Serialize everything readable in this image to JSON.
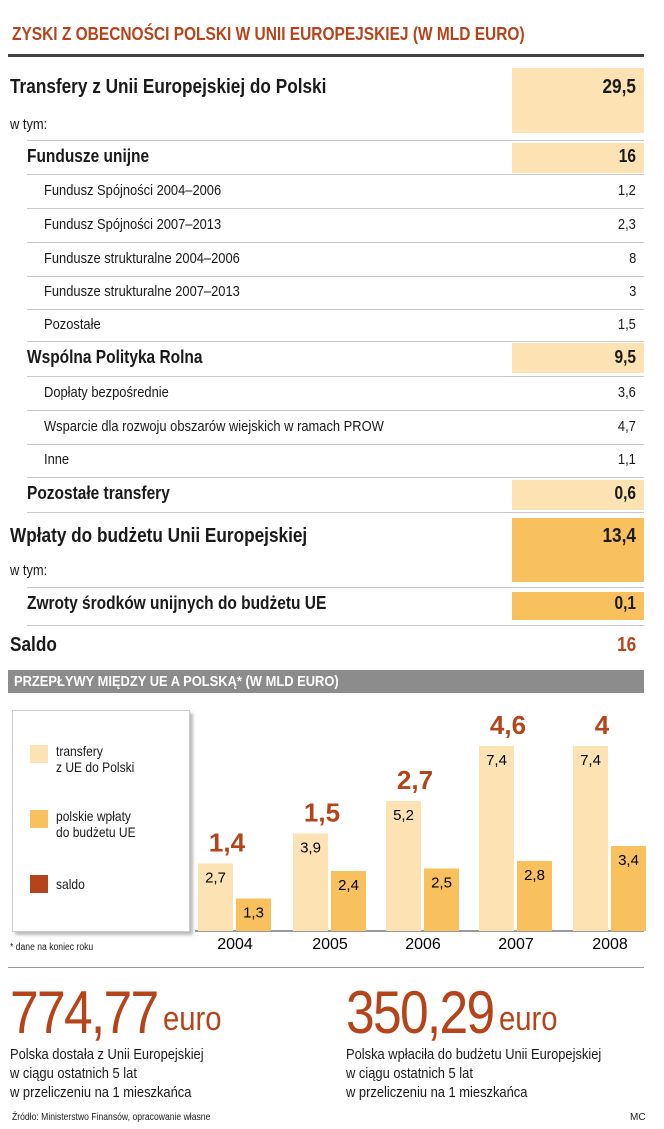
{
  "header": {
    "title": "ZYSKI Z OBECNOŚCI POLSKI W UNII EUROPEJSKIEJ (W MLD EURO)"
  },
  "table": {
    "rows": [
      {
        "label": "Transfery z Unii Europejskiej do Polski",
        "value": "29,5"
      },
      {
        "label": "w tym:"
      },
      {
        "label": "Fundusze unijne",
        "value": "16"
      },
      {
        "label": "Fundusz Spójności 2004–2006",
        "value": "1,2"
      },
      {
        "label": "Fundusz Spójności 2007–2013",
        "value": "2,3"
      },
      {
        "label": "Fundusze strukturalne 2004–2006",
        "value": "8"
      },
      {
        "label": "Fundusze strukturalne 2007–2013",
        "value": "3"
      },
      {
        "label": "Pozostałe",
        "value": "1,5"
      },
      {
        "label": "Wspólna Polityka Rolna",
        "value": "9,5"
      },
      {
        "label": "Dopłaty bezpośrednie",
        "value": "3,6"
      },
      {
        "label": "Wsparcie dla rozwoju obszarów wiejskich w ramach PROW",
        "value": "4,7"
      },
      {
        "label": "Inne",
        "value": "1,1"
      },
      {
        "label": "Pozostałe transfery",
        "value": "0,6"
      },
      {
        "label": "Wpłaty do budżetu Unii Europejskiej",
        "value": "13,4"
      },
      {
        "label": "w tym:"
      },
      {
        "label": "Zwroty środków unijnych do budżetu UE",
        "value": "0,1"
      },
      {
        "label": "Saldo",
        "value": "16"
      }
    ]
  },
  "chart_data": {
    "type": "bar",
    "title": "PRZEPŁYWY MIĘDZY UE A POLSKĄ* (W MLD EURO)",
    "note": "* dane na koniec roku",
    "categories": [
      "2004",
      "2005",
      "2006",
      "2007",
      "2008"
    ],
    "series": [
      {
        "name": "transfery\nz UE do Polski",
        "color": "#fde2b4",
        "values": [
          2.7,
          3.9,
          5.2,
          7.4,
          7.4
        ],
        "value_labels": [
          "2,7",
          "3,9",
          "5,2",
          "7,4",
          "7,4"
        ]
      },
      {
        "name": "polskie wpłaty\ndo budżetu UE",
        "color": "#f9c05e",
        "values": [
          1.3,
          2.4,
          2.5,
          2.8,
          3.4
        ],
        "value_labels": [
          "1,3",
          "2,4",
          "2,5",
          "2,8",
          "3,4"
        ]
      },
      {
        "name": "saldo",
        "color": "#b5441b",
        "values": [
          1.4,
          1.5,
          2.7,
          4.6,
          4
        ],
        "value_labels": [
          "1,4",
          "1,5",
          "2,7",
          "4,6",
          "4"
        ]
      }
    ]
  },
  "stats": [
    {
      "value": "774,77",
      "unit": "euro",
      "text": "Polska dostała z Unii Europejskiej\nw ciągu ostatnich 5 lat\nw przeliczeniu na 1 mieszkańca"
    },
    {
      "value": "350,29",
      "unit": "euro",
      "text": "Polska wpłaciła do budżetu Unii Europejskiej\nw ciągu ostatnich 5 lat\nw przeliczeniu na 1 mieszkańca"
    }
  ],
  "footer": {
    "source": "Źródło: Ministerstwo Finansów, opracowanie własne",
    "author": "MC"
  }
}
